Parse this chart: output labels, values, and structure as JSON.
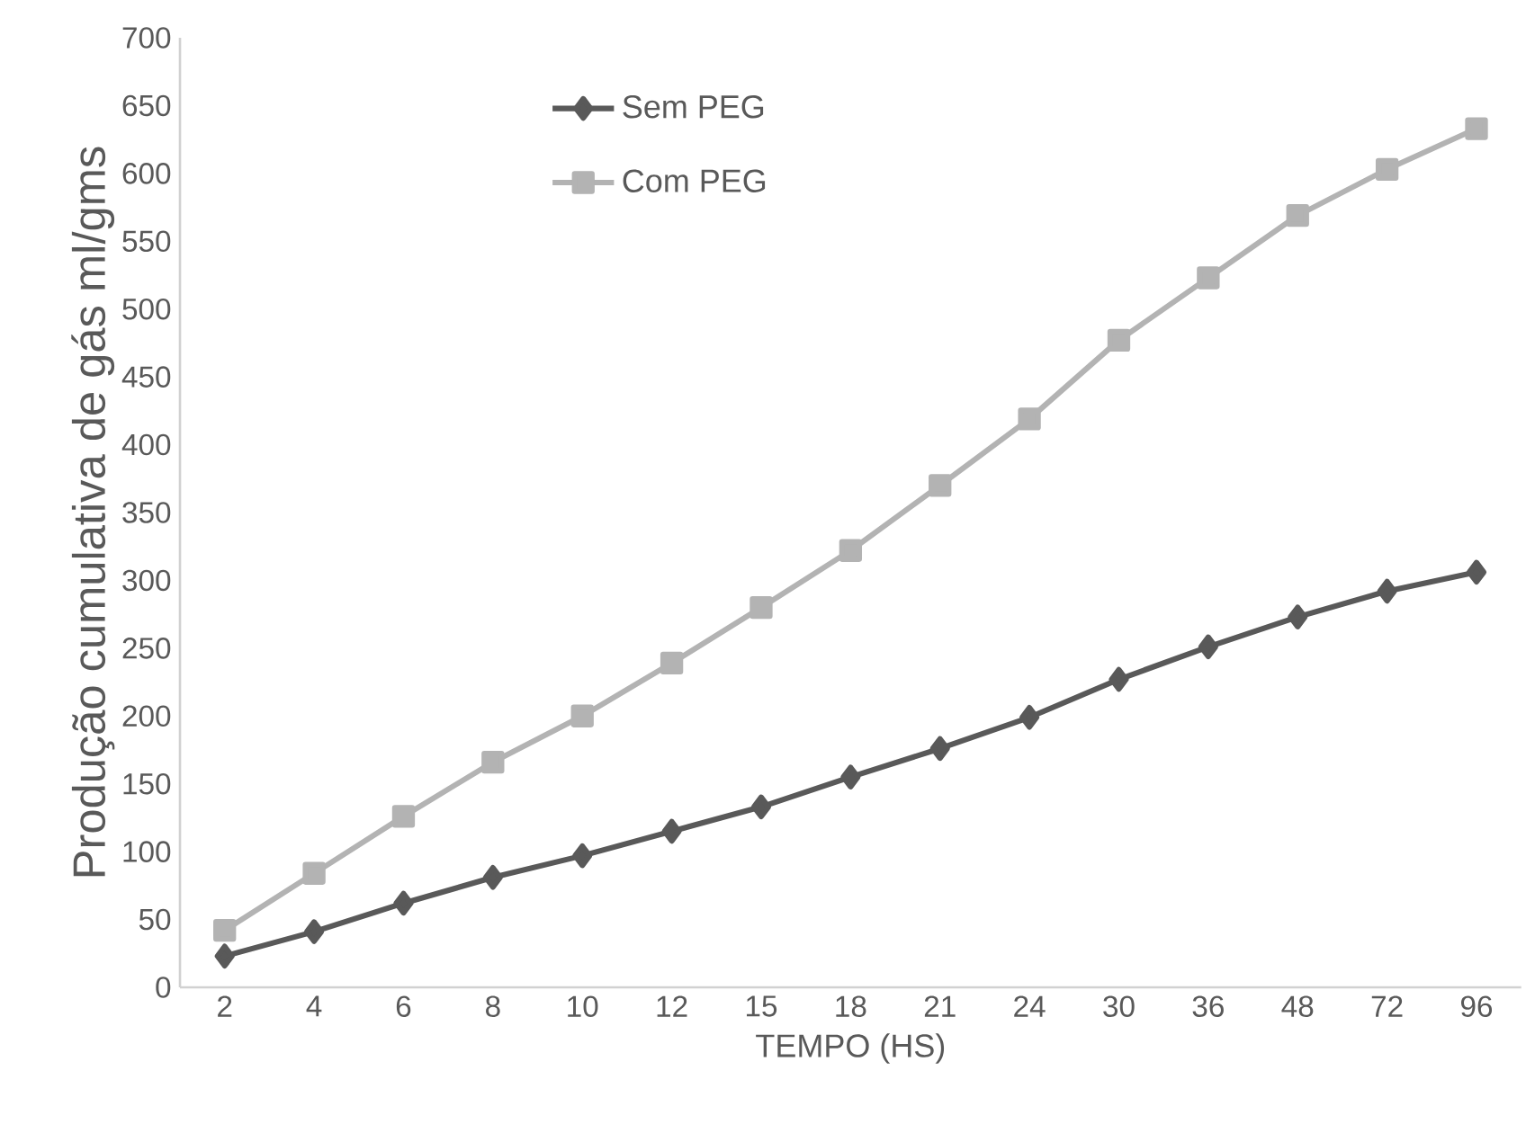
{
  "chart_data": {
    "type": "line",
    "xlabel": "TEMPO (HS)",
    "ylabel": "Produção cumulativa de gás ml/gms",
    "categories": [
      "2",
      "4",
      "6",
      "8",
      "10",
      "12",
      "15",
      "18",
      "21",
      "24",
      "30",
      "36",
      "48",
      "72",
      "96"
    ],
    "series": [
      {
        "name": "Sem PEG",
        "color": "#595959",
        "marker": "diamond",
        "values": [
          23,
          41,
          62,
          81,
          97,
          115,
          133,
          155,
          176,
          199,
          227,
          251,
          273,
          292,
          306
        ]
      },
      {
        "name": "Com PEG",
        "color": "#b3b3b3",
        "marker": "square",
        "values": [
          42,
          84,
          126,
          166,
          200,
          239,
          280,
          322,
          370,
          419,
          477,
          523,
          569,
          603,
          633
        ]
      }
    ],
    "ylim": [
      0,
      700
    ],
    "yticks": [
      0,
      50,
      100,
      150,
      200,
      250,
      300,
      350,
      400,
      450,
      500,
      550,
      600,
      650,
      700
    ],
    "grid": false,
    "legend": "top left",
    "line_style": "solid"
  }
}
